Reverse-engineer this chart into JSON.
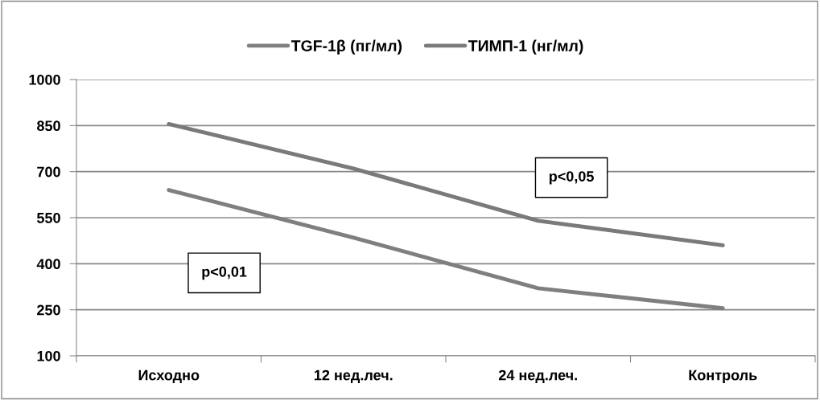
{
  "chart_data": {
    "type": "line",
    "categories": [
      "Исходно",
      "12 нед.леч.",
      "24 нед.леч.",
      "Контроль"
    ],
    "series": [
      {
        "name": "TGF-1β (пг/мл)",
        "color": "#7f7f7f",
        "values": [
          640,
          485,
          320,
          255
        ]
      },
      {
        "name": "ТИМП-1 (нг/мл)",
        "color": "#7a7a7a",
        "values": [
          855,
          710,
          540,
          460
        ]
      }
    ],
    "ylim": [
      100,
      1000
    ],
    "yticks": [
      100,
      250,
      400,
      550,
      700,
      850,
      1000
    ],
    "grid": "y",
    "legend": "top",
    "marker": "none",
    "line_style": "solid",
    "annotations": [
      "p<0,01",
      "p<0,05"
    ]
  }
}
